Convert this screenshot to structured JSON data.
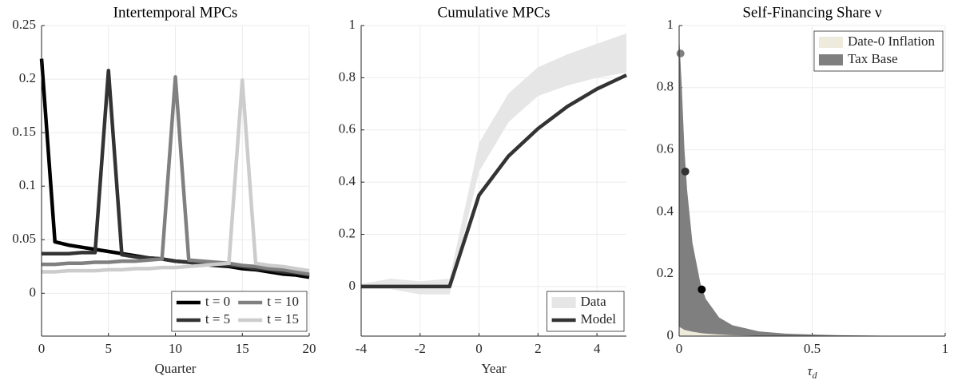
{
  "chart_data": [
    {
      "type": "line",
      "title": "Intertemporal MPCs",
      "xlabel": "Quarter",
      "x": [
        0,
        1,
        2,
        3,
        4,
        5,
        6,
        7,
        8,
        9,
        10,
        11,
        12,
        13,
        14,
        15,
        16,
        17,
        18,
        19,
        20
      ],
      "xlim": [
        0,
        20
      ],
      "xticks": [
        0,
        5,
        10,
        15,
        20
      ],
      "ylim": [
        -0.04,
        0.25
      ],
      "yticks": [
        0,
        0.05,
        0.1,
        0.15,
        0.2,
        0.25
      ],
      "grid": true,
      "legend": "lower right",
      "legend_columns": 2,
      "series": [
        {
          "name": "t = 0",
          "color": "#000000",
          "values": [
            0.219,
            0.048,
            0.045,
            0.043,
            0.041,
            0.039,
            0.037,
            0.035,
            0.033,
            0.032,
            0.03,
            0.029,
            0.027,
            0.026,
            0.025,
            0.023,
            0.022,
            0.02,
            0.018,
            0.017,
            0.015
          ]
        },
        {
          "name": "t = 5",
          "color": "#333333",
          "values": [
            0.037,
            0.037,
            0.037,
            0.038,
            0.038,
            0.208,
            0.036,
            0.034,
            0.033,
            0.032,
            0.03,
            0.029,
            0.028,
            0.027,
            0.026,
            0.025,
            0.023,
            0.022,
            0.02,
            0.019,
            0.017
          ]
        },
        {
          "name": "t = 10",
          "color": "#808080",
          "values": [
            0.027,
            0.027,
            0.028,
            0.028,
            0.029,
            0.029,
            0.03,
            0.03,
            0.031,
            0.032,
            0.202,
            0.031,
            0.03,
            0.029,
            0.028,
            0.026,
            0.025,
            0.023,
            0.022,
            0.02,
            0.018
          ]
        },
        {
          "name": "t = 15",
          "color": "#cccccc",
          "values": [
            0.02,
            0.02,
            0.021,
            0.021,
            0.021,
            0.022,
            0.022,
            0.023,
            0.023,
            0.024,
            0.024,
            0.025,
            0.026,
            0.027,
            0.028,
            0.199,
            0.028,
            0.026,
            0.025,
            0.023,
            0.021
          ]
        }
      ]
    },
    {
      "type": "line",
      "title": "Cumulative MPCs",
      "xlabel": "Year",
      "x": [
        -4,
        -3,
        -2,
        -1,
        0,
        1,
        2,
        3,
        4,
        5
      ],
      "xlim": [
        -4,
        5
      ],
      "xticks": [
        -4,
        -2,
        0,
        2,
        4
      ],
      "ylim": [
        -0.19,
        1
      ],
      "yticks": [
        0,
        0.2,
        0.4,
        0.6,
        0.8,
        1
      ],
      "grid": true,
      "legend": "lower right",
      "series": [
        {
          "name": "Data",
          "color": "#e6e6e6",
          "lower": [
            -0.01,
            -0.01,
            -0.03,
            -0.03,
            0.44,
            0.63,
            0.73,
            0.77,
            0.8,
            0.82
          ],
          "upper": [
            0.01,
            0.03,
            0.02,
            0.03,
            0.55,
            0.74,
            0.84,
            0.89,
            0.93,
            0.97
          ]
        },
        {
          "name": "Model",
          "color": "#333333",
          "values": [
            0,
            0,
            0,
            0,
            0.35,
            0.5,
            0.605,
            0.69,
            0.757,
            0.81
          ]
        }
      ]
    },
    {
      "type": "area",
      "title": "Self-Financing Share ν",
      "xlabel": "τ",
      "xlabel_subscript": "d",
      "x": [
        0,
        0.01,
        0.02,
        0.03,
        0.05,
        0.08,
        0.1,
        0.15,
        0.2,
        0.3,
        0.4,
        0.5,
        0.6,
        0.7,
        0.8,
        0.9,
        1
      ],
      "xlim": [
        0,
        1
      ],
      "xticks": [
        0,
        0.5,
        1
      ],
      "ylim": [
        0,
        1
      ],
      "yticks": [
        0,
        0.2,
        0.4,
        0.6,
        0.8,
        1
      ],
      "grid": true,
      "legend": "upper right",
      "series": [
        {
          "name": "Date-0 Inflation",
          "color": "#efebdc",
          "values": [
            0.03,
            0.025,
            0.02,
            0.018,
            0.014,
            0.01,
            0.008,
            0.005,
            0.003,
            0.001,
            0,
            0,
            0,
            0,
            0,
            0,
            0
          ]
        },
        {
          "name": "Tax Base",
          "color": "#7f7f7f",
          "values": [
            0.94,
            0.775,
            0.58,
            0.452,
            0.286,
            0.16,
            0.112,
            0.055,
            0.032,
            0.014,
            0.008,
            0.005,
            0.003,
            0.002,
            0.001,
            0.0005,
            0
          ]
        }
      ],
      "markers": {
        "x": [
          0.005,
          0.023,
          0.085
        ],
        "values": [
          0.91,
          0.53,
          0.15
        ],
        "colors": [
          "#808080",
          "#333333",
          "#000000"
        ]
      }
    }
  ]
}
